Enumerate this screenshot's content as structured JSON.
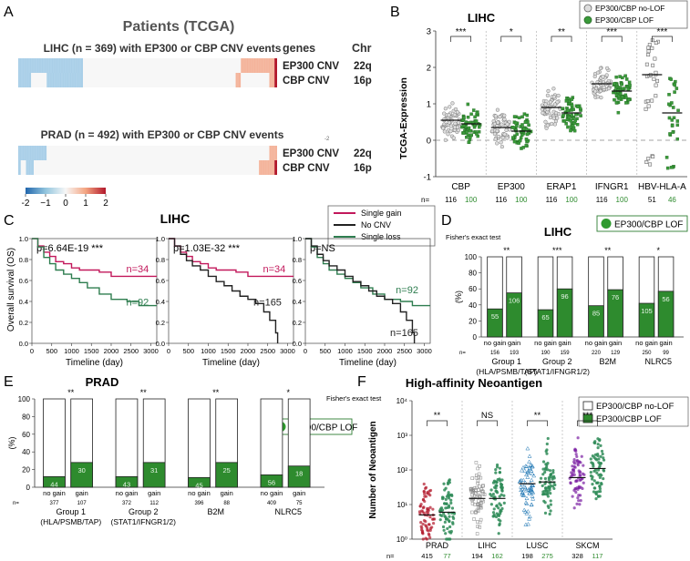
{
  "panel_letters": [
    "A",
    "B",
    "C",
    "D",
    "E",
    "F"
  ],
  "chart_data": [
    {
      "id": "A",
      "type": "heatmap",
      "title": "Patients (TCGA)",
      "col_headers": {
        "genes": "genes",
        "chr": "Chr"
      },
      "blocks": [
        {
          "subtitle": "LIHC (n = 369) with EP300 or CBP CNV events",
          "rows": [
            {
              "label": "EP300 CNV",
              "chr": "22q",
              "segments": [
                [
                  0.0,
                  0.25,
                  -1
                ],
                [
                  0.25,
                  0.86,
                  0
                ],
                [
                  0.86,
                  0.99,
                  1
                ],
                [
                  0.99,
                  1.0,
                  2
                ]
              ]
            },
            {
              "label": "CBP CNV",
              "chr": "16p",
              "segments": [
                [
                  0.0,
                  0.05,
                  -1
                ],
                [
                  0.05,
                  0.11,
                  0
                ],
                [
                  0.11,
                  0.25,
                  -1
                ],
                [
                  0.25,
                  0.84,
                  0
                ],
                [
                  0.84,
                  0.86,
                  1
                ],
                [
                  0.86,
                  0.97,
                  0
                ],
                [
                  0.97,
                  0.99,
                  1
                ],
                [
                  0.99,
                  1.0,
                  2
                ]
              ]
            }
          ]
        },
        {
          "subtitle": "PRAD (n = 492) with EP300 or CBP CNV events",
          "note": "-2",
          "rows": [
            {
              "label": "EP300 CNV",
              "chr": "22q",
              "segments": [
                [
                  0.0,
                  0.11,
                  -1
                ],
                [
                  0.11,
                  0.97,
                  0
                ],
                [
                  0.97,
                  1.0,
                  1
                ]
              ]
            },
            {
              "label": "CBP CNV",
              "chr": "16p",
              "segments": [
                [
                  0.0,
                  0.01,
                  -1
                ],
                [
                  0.01,
                  0.03,
                  0
                ],
                [
                  0.03,
                  0.06,
                  -1
                ],
                [
                  0.06,
                  0.93,
                  0
                ],
                [
                  0.93,
                  0.99,
                  1
                ],
                [
                  0.99,
                  1.0,
                  2
                ]
              ]
            }
          ]
        }
      ],
      "colorbar": {
        "ticks": [
          "-2",
          "−1",
          "0",
          "1",
          "2"
        ],
        "range": [
          -2,
          2
        ]
      }
    },
    {
      "id": "B",
      "type": "scatter",
      "title": "LIHC",
      "ylabel": "TCGA-Expression",
      "ylim": [
        -1,
        3
      ],
      "yticks": [
        "-1",
        "0",
        "1",
        "2",
        "3"
      ],
      "legend": [
        "EP300/CBP no-LOF",
        "EP300/CBP LOF"
      ],
      "categories": [
        "CBP",
        "EP300",
        "ERAP1",
        "IFNGR1",
        "HBV-HLA-A"
      ],
      "significance": [
        "***",
        "*",
        "**",
        "***",
        "***"
      ],
      "n_label": "n=",
      "n_nolof": [
        "116",
        "116",
        "116",
        "116",
        "51"
      ],
      "n_lof": [
        "100",
        "100",
        "100",
        "100",
        "46"
      ],
      "medians_nolof": [
        0.55,
        0.35,
        0.9,
        1.55,
        1.8
      ],
      "medians_lof": [
        0.45,
        0.25,
        0.75,
        1.35,
        0.75
      ]
    },
    {
      "id": "C",
      "type": "line",
      "title": "LIHC",
      "ylabel": "Overall survival (OS)",
      "xlabel": "Timeline (day)",
      "xticks": [
        "0",
        "500",
        "1000",
        "1500",
        "2000",
        "2500",
        "3000"
      ],
      "yticks": [
        "0.0",
        "0.2",
        "0.4",
        "0.6",
        "0.8",
        "1.0"
      ],
      "legend": [
        "Single gain",
        "No CNV",
        "Single loss"
      ],
      "legend_colors": [
        "#c2185b",
        "#222222",
        "#2e7d4f"
      ],
      "subplots": [
        {
          "pvalue": "p=6.64E-19 ***",
          "labels": [
            {
              "text": "n=34",
              "color": "#c2185b",
              "x": 2950,
              "y": 0.68
            },
            {
              "text": "n=92",
              "color": "#2e7d4f",
              "x": 2950,
              "y": 0.36
            }
          ],
          "series": [
            {
              "name": "Single gain",
              "color": "#c2185b",
              "x": [
                0,
                150,
                300,
                450,
                600,
                800,
                1000,
                1200,
                1400,
                1700,
                2000,
                2400,
                3150
              ],
              "y": [
                1.0,
                0.93,
                0.87,
                0.83,
                0.78,
                0.76,
                0.72,
                0.7,
                0.7,
                0.68,
                0.64,
                0.64,
                0.64
              ]
            },
            {
              "name": "Single loss",
              "color": "#2e7d4f",
              "x": [
                0,
                150,
                300,
                450,
                600,
                800,
                1000,
                1200,
                1400,
                1700,
                2000,
                2400,
                2700,
                3150
              ],
              "y": [
                1.0,
                0.92,
                0.82,
                0.76,
                0.7,
                0.66,
                0.62,
                0.58,
                0.53,
                0.47,
                0.42,
                0.4,
                0.36,
                0.36
              ]
            }
          ]
        },
        {
          "pvalue": "p=1.03E-32 ***",
          "labels": [
            {
              "text": "n=34",
              "color": "#c2185b",
              "x": 2950,
              "y": 0.68
            },
            {
              "text": "n=165",
              "color": "#222222",
              "x": 2850,
              "y": 0.36
            }
          ],
          "series": [
            {
              "name": "Single gain",
              "color": "#c2185b",
              "x": [
                0,
                150,
                300,
                450,
                600,
                800,
                1000,
                1200,
                1400,
                1700,
                2000,
                2400,
                3150
              ],
              "y": [
                1.0,
                0.93,
                0.87,
                0.83,
                0.78,
                0.76,
                0.72,
                0.7,
                0.7,
                0.68,
                0.64,
                0.64,
                0.64
              ]
            },
            {
              "name": "No CNV",
              "color": "#222222",
              "x": [
                0,
                150,
                300,
                450,
                600,
                800,
                1000,
                1200,
                1400,
                1600,
                1800,
                2000,
                2200,
                2400,
                2550,
                2700,
                2750
              ],
              "y": [
                1.0,
                0.93,
                0.85,
                0.79,
                0.74,
                0.7,
                0.64,
                0.59,
                0.55,
                0.5,
                0.45,
                0.42,
                0.38,
                0.3,
                0.22,
                0.1,
                0.0
              ]
            }
          ]
        },
        {
          "pvalue": "p=NS",
          "labels": [
            {
              "text": "n=92",
              "color": "#2e7d4f",
              "x": 2850,
              "y": 0.48
            },
            {
              "text": "n=165",
              "color": "#222222",
              "x": 2850,
              "y": 0.07
            }
          ],
          "series": [
            {
              "name": "Single loss",
              "color": "#2e7d4f",
              "x": [
                0,
                150,
                300,
                450,
                600,
                800,
                1000,
                1200,
                1400,
                1700,
                2000,
                2400,
                2700,
                3150
              ],
              "y": [
                1.0,
                0.92,
                0.82,
                0.76,
                0.7,
                0.66,
                0.62,
                0.58,
                0.53,
                0.47,
                0.42,
                0.4,
                0.36,
                0.36
              ]
            },
            {
              "name": "No CNV",
              "color": "#222222",
              "x": [
                0,
                150,
                300,
                450,
                600,
                800,
                1000,
                1200,
                1400,
                1600,
                1800,
                2000,
                2200,
                2400,
                2550,
                2700,
                2750
              ],
              "y": [
                1.0,
                0.93,
                0.85,
                0.79,
                0.74,
                0.7,
                0.64,
                0.59,
                0.55,
                0.5,
                0.45,
                0.42,
                0.38,
                0.3,
                0.22,
                0.1,
                0.0
              ]
            }
          ]
        }
      ]
    },
    {
      "id": "D",
      "type": "bar",
      "title": "LIHC",
      "legend": "EP300/CBP LOF",
      "fisher_label": "Fisher's exact test",
      "ylabel": "(%)",
      "ylim": [
        0,
        100
      ],
      "yticks": [
        "0",
        "20",
        "40",
        "60",
        "80",
        "100"
      ],
      "n_label": "n=",
      "bar_labels": [
        "no gain",
        "gain",
        "no gain",
        "gain",
        "no gain",
        "gain",
        "no gain",
        "gain"
      ],
      "values": [
        35,
        55,
        34,
        60,
        39,
        59,
        42,
        57
      ],
      "counts": [
        "55",
        "106",
        "65",
        "96",
        "85",
        "76",
        "105",
        "56"
      ],
      "n": [
        "156",
        "193",
        "190",
        "159",
        "220",
        "129",
        "250",
        "99"
      ],
      "groups": [
        {
          "name": "Group 1",
          "sub": "(HLA/PSMB/TAP)",
          "sig": "**"
        },
        {
          "name": "Group 2",
          "sub": "(STAT1/IFNGR1/2)",
          "sig": "***"
        },
        {
          "name": "B2M",
          "sub": "",
          "sig": "**"
        },
        {
          "name": "NLRC5",
          "sub": "",
          "sig": "*"
        }
      ]
    },
    {
      "id": "E",
      "type": "bar",
      "title": "PRAD",
      "legend": "EP300/CBP LOF",
      "fisher_label": "Fisher's exact test",
      "ylabel": "(%)",
      "ylim": [
        0,
        100
      ],
      "yticks": [
        "0",
        "20",
        "40",
        "60",
        "80",
        "100"
      ],
      "n_label": "n=",
      "bar_labels": [
        "no gain",
        "gain",
        "no gain",
        "gain",
        "no gain",
        "gain",
        "no gain",
        "gain"
      ],
      "values": [
        12,
        28,
        12,
        28,
        11,
        28,
        14,
        24
      ],
      "counts": [
        "44",
        "30",
        "43",
        "31",
        "45",
        "25",
        "56",
        "18"
      ],
      "n": [
        "377",
        "107",
        "372",
        "112",
        "396",
        "88",
        "409",
        "75"
      ],
      "groups": [
        {
          "name": "Group 1",
          "sub": "(HLA/PSMB/TAP)",
          "sig": "**"
        },
        {
          "name": "Group 2",
          "sub": "(STAT1/IFNGR1/2)",
          "sig": "**"
        },
        {
          "name": "B2M",
          "sub": "",
          "sig": "**"
        },
        {
          "name": "NLRC5",
          "sub": "",
          "sig": "*"
        }
      ]
    },
    {
      "id": "F",
      "type": "scatter",
      "title": "High-affinity Neoantigen",
      "ylabel": "Number of Neoantigen",
      "yscale": "log",
      "ylim": [
        1,
        10000
      ],
      "yticks": [
        "10⁰",
        "10¹",
        "10²",
        "10³",
        "10⁴"
      ],
      "legend": [
        "EP300/CBP no-LOF",
        "EP300/CBP LOF"
      ],
      "categories": [
        "PRAD",
        "LIHC",
        "LUSC",
        "SKCM"
      ],
      "significance": [
        "**",
        "NS",
        "**",
        "***"
      ],
      "n_label": "n=",
      "n_nolof": [
        "415",
        "194",
        "198",
        "328"
      ],
      "n_lof": [
        "77",
        "162",
        "275",
        "117"
      ],
      "medians_nolof": [
        5,
        15,
        40,
        60
      ],
      "medians_lof": [
        6,
        15,
        45,
        110
      ],
      "colors_nolof": [
        "#b2182b",
        "#888888",
        "#1f77b4",
        "#7b1fa2"
      ],
      "colors_lof": [
        "#2e8b57",
        "#2e8b57",
        "#2e8b57",
        "#2e8b57"
      ]
    }
  ]
}
